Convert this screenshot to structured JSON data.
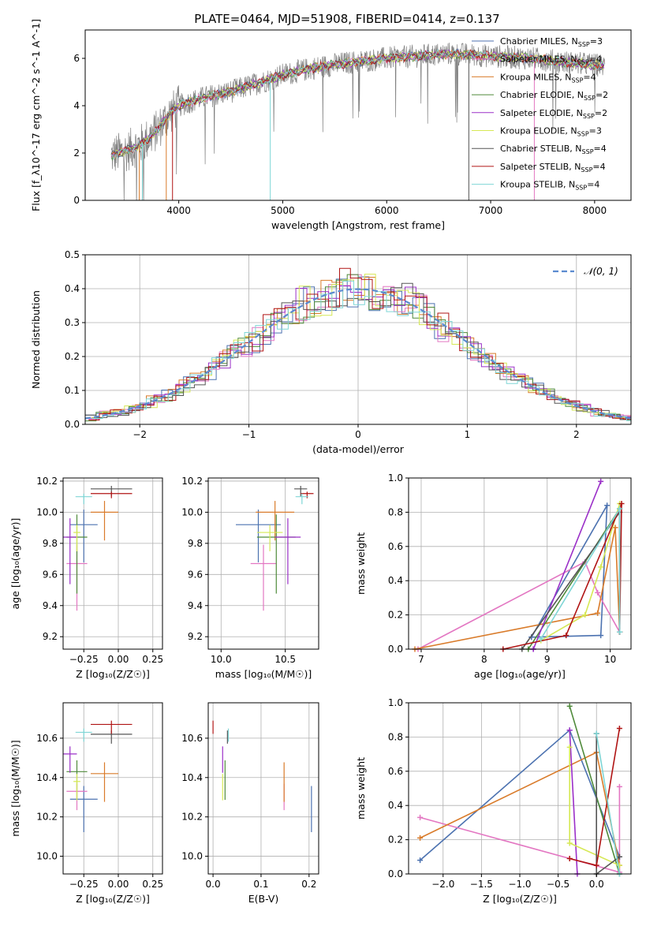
{
  "title": "PLATE=0464, MJD=51908, FIBERID=0414, z=0.137",
  "colors": {
    "chabrier_miles": "#4c72b0",
    "salpeter_miles": "#e377c2",
    "kroupa_miles": "#d97b2a",
    "chabrier_elodie": "#4f8a3a",
    "salpeter_elodie": "#9b30c8",
    "kroupa_elodie": "#d6e855",
    "chabrier_stelib": "#555555",
    "salpeter_stelib": "#b01414",
    "kroupa_stelib": "#7fd6d6",
    "data": "#808080",
    "blue_line": "#4a7fd4",
    "normal": "#5b8bd0"
  },
  "chart_data": [
    {
      "id": "spectrum",
      "type": "line",
      "xlabel": "wavelength [Angstrom, rest frame]",
      "ylabel": "Flux [f_λ10^-17 erg cm^-2 s^-1 A^-1]",
      "xlim": [
        3100,
        8350
      ],
      "ylim": [
        0,
        7.2
      ],
      "xticks": [
        "4000",
        "5000",
        "6000",
        "7000",
        "8000"
      ],
      "yticks": [
        "0",
        "2",
        "4",
        "6"
      ],
      "legend_position": "right",
      "legend": [
        {
          "label": "Chabrier MILES, N",
          "sub": "SSP",
          "val": "=3"
        },
        {
          "label": "Salpeter MILES, N",
          "sub": "SSP",
          "val": "=4"
        },
        {
          "label": "Kroupa MILES, N",
          "sub": "SSP",
          "val": "=4"
        },
        {
          "label": "Chabrier ELODIE, N",
          "sub": "SSP",
          "val": "=2"
        },
        {
          "label": "Salpeter ELODIE, N",
          "sub": "SSP",
          "val": "=2"
        },
        {
          "label": "Kroupa ELODIE, N",
          "sub": "SSP",
          "val": "=3"
        },
        {
          "label": "Chabrier STELIB, N",
          "sub": "SSP",
          "val": "=4"
        },
        {
          "label": "Salpeter STELIB, N",
          "sub": "SSP",
          "val": "=4"
        },
        {
          "label": "Kroupa STELIB, N",
          "sub": "SSP",
          "val": "=4"
        }
      ],
      "continuum": [
        [
          3350,
          1.9
        ],
        [
          3500,
          2.1
        ],
        [
          3650,
          2.4
        ],
        [
          3800,
          3.0
        ],
        [
          3900,
          3.6
        ],
        [
          4000,
          4.0
        ],
        [
          4200,
          4.3
        ],
        [
          4500,
          4.6
        ],
        [
          4800,
          5.0
        ],
        [
          5000,
          5.3
        ],
        [
          5300,
          5.6
        ],
        [
          5600,
          5.8
        ],
        [
          6000,
          6.0
        ],
        [
          6300,
          6.1
        ],
        [
          6600,
          6.2
        ],
        [
          7000,
          6.1
        ],
        [
          7400,
          6.0
        ],
        [
          7800,
          5.8
        ],
        [
          8100,
          5.7
        ]
      ]
    },
    {
      "id": "residuals",
      "type": "histogram",
      "xlabel": "(data-model)/error",
      "ylabel": "Normed distribution",
      "xlim": [
        -2.5,
        2.5
      ],
      "ylim": [
        0,
        0.5
      ],
      "xticks": [
        "−2",
        "−1",
        "0",
        "1",
        "2"
      ],
      "yticks": [
        "0.0",
        "0.1",
        "0.2",
        "0.3",
        "0.4",
        "0.5"
      ],
      "legend_label": "𝒩(0, 1)",
      "legend_position": "top-right"
    },
    {
      "id": "age-vs-Z",
      "type": "errorbar",
      "xlabel": "Z [log₁₀(Z/Z☉)]",
      "ylabel": "age  [log₁₀(age/yr)]",
      "xlim": [
        -0.4,
        0.32
      ],
      "ylim": [
        9.12,
        10.22
      ],
      "xticks": [
        "−0.25",
        "0.00",
        "0.25"
      ],
      "yticks": [
        "9.2",
        "9.4",
        "9.6",
        "9.8",
        "10.0",
        "10.2"
      ]
    },
    {
      "id": "age-vs-mass",
      "type": "errorbar",
      "xlabel": "mass [log₁₀(M/M☉)]",
      "xlim": [
        9.9,
        10.76
      ],
      "ylim": [
        9.12,
        10.22
      ],
      "xticks": [
        "10.0",
        "10.5"
      ],
      "yticks": [
        "9.2",
        "9.4",
        "9.6",
        "9.8",
        "10.0",
        "10.2"
      ]
    },
    {
      "id": "weight-vs-age",
      "type": "line",
      "xlabel": "age  [log₁₀(age/yr)]",
      "ylabel": "mass weight",
      "xlim": [
        6.8,
        10.33
      ],
      "ylim": [
        0,
        1.0
      ],
      "xticks": [
        "7",
        "8",
        "9",
        "10"
      ],
      "yticks": [
        "0.0",
        "0.2",
        "0.4",
        "0.6",
        "0.8",
        "1.0"
      ]
    },
    {
      "id": "mass-vs-Z",
      "type": "errorbar",
      "xlabel": "Z [log₁₀(Z/Z☉)]",
      "ylabel": "mass [log₁₀(M/M☉)]",
      "xlim": [
        -0.4,
        0.32
      ],
      "ylim": [
        9.91,
        10.78
      ],
      "xticks": [
        "−0.25",
        "0.00",
        "0.25"
      ],
      "yticks": [
        "10.0",
        "10.2",
        "10.4",
        "10.6"
      ]
    },
    {
      "id": "mass-vs-EBV",
      "type": "errorbar",
      "xlabel": "E(B-V)",
      "xlim": [
        -0.01,
        0.22
      ],
      "ylim": [
        9.91,
        10.78
      ],
      "xticks": [
        "0.0",
        "0.1",
        "0.2"
      ],
      "yticks": [
        "10.0",
        "10.2",
        "10.4",
        "10.6"
      ]
    },
    {
      "id": "weight-vs-Z",
      "type": "line",
      "xlabel": "Z [log₁₀(Z/Z☉)]",
      "ylabel": "mass weight",
      "xlim": [
        -2.45,
        0.45
      ],
      "ylim": [
        0,
        1.0
      ],
      "xticks": [
        "−2.0",
        "−1.5",
        "−1.0",
        "−0.5",
        "0.0"
      ],
      "yticks": [
        "0.0",
        "0.2",
        "0.4",
        "0.6",
        "0.8",
        "1.0"
      ]
    }
  ],
  "fit_params": {
    "Z": [
      [
        -0.25,
        0.2
      ],
      [
        -0.3,
        0.15
      ],
      [
        -0.1,
        0.2
      ],
      [
        -0.3,
        0.15
      ],
      [
        -0.35,
        0.1
      ],
      [
        -0.3,
        0.05
      ],
      [
        -0.05,
        0.3
      ],
      [
        -0.05,
        0.3
      ],
      [
        -0.25,
        0.12
      ]
    ],
    "age": [
      [
        9.92,
        0.4
      ],
      [
        9.67,
        0.5
      ],
      [
        10.0,
        0.3
      ],
      [
        9.84,
        0.6
      ],
      [
        9.84,
        0.5
      ],
      [
        9.87,
        0.2
      ],
      [
        10.15,
        0.08
      ],
      [
        10.12,
        0.05
      ],
      [
        10.1,
        0.08
      ]
    ],
    "mass": [
      [
        10.29,
        0.35
      ],
      [
        10.33,
        0.2
      ],
      [
        10.42,
        0.3
      ],
      [
        10.43,
        0.3
      ],
      [
        10.52,
        0.2
      ],
      [
        10.38,
        0.2
      ],
      [
        10.62,
        0.1
      ],
      [
        10.67,
        0.1
      ],
      [
        10.63,
        0.1
      ]
    ],
    "ebv": [
      [
        0.205,
        0.4
      ],
      [
        0.148,
        0.45
      ],
      [
        0.148,
        0.4
      ],
      [
        0.025,
        0.7
      ],
      [
        0.02,
        0.35
      ],
      [
        0.02,
        0.4
      ],
      [
        0.03,
        0.2
      ],
      [
        0.0,
        0.3
      ],
      [
        0.032,
        0.25
      ]
    ]
  }
}
